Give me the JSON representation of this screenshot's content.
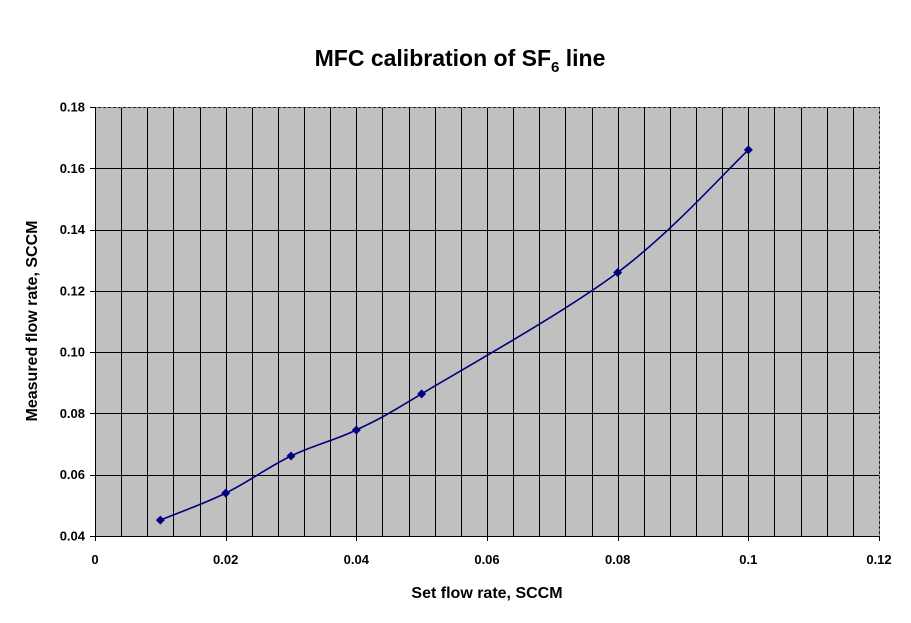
{
  "chart_data": {
    "type": "line",
    "title": {
      "prefix": "MFC calibration of SF",
      "subscript": "6",
      "suffix": " line"
    },
    "xlabel": "Set flow rate, SCCM",
    "ylabel": "Measured flow rate, SCCM",
    "xlim": [
      0,
      0.12
    ],
    "ylim": [
      0.04,
      0.18
    ],
    "x_ticks": [
      0,
      0.02,
      0.04,
      0.06,
      0.08,
      0.1,
      0.12
    ],
    "x_tick_labels": [
      "0",
      "0.02",
      "0.04",
      "0.06",
      "0.08",
      "0.1",
      "0.12"
    ],
    "y_ticks": [
      0.04,
      0.06,
      0.08,
      0.1,
      0.12,
      0.14,
      0.16,
      0.18
    ],
    "y_tick_labels": [
      "0.04",
      "0.06",
      "0.08",
      "0.10",
      "0.12",
      "0.14",
      "0.16",
      "0.18"
    ],
    "x_minor_step": 0.004,
    "grid": true,
    "series": [
      {
        "x": [
          0.01,
          0.02,
          0.03,
          0.04,
          0.05,
          0.08,
          0.1
        ],
        "y": [
          0.0452,
          0.054,
          0.0661,
          0.0746,
          0.0864,
          0.126,
          0.166
        ],
        "color": "#000080",
        "marker": "diamond",
        "smooth": true
      }
    ],
    "plot_background": "#c0c0c0",
    "grid_color": "#000000"
  }
}
